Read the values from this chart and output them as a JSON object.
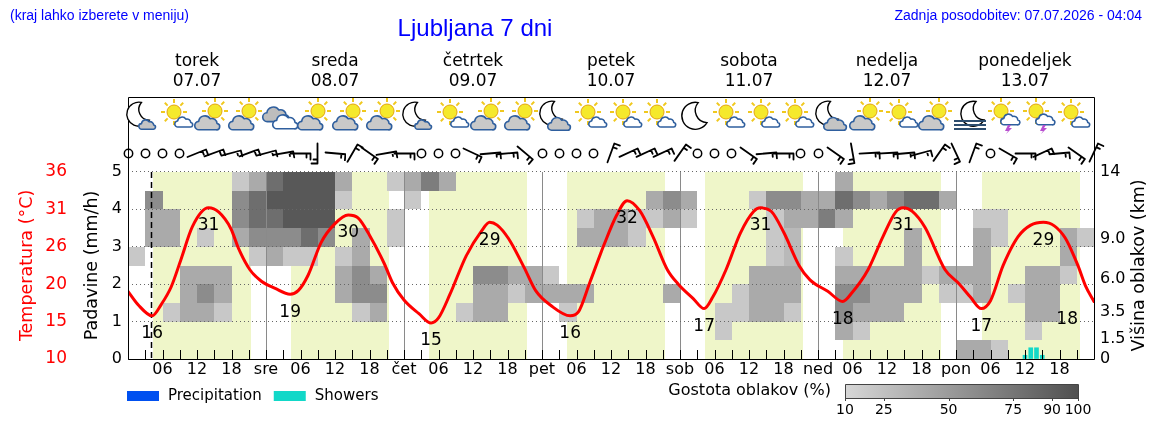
{
  "chart_data": [
    {
      "type": "line",
      "title": "Ljubljana 7 dni",
      "annotations": [
        "(kraj lahko izberete v meniju)",
        "Zadnja posodobitev: 07.07.2026 - 04:04"
      ],
      "xlim": [
        "2026-07-07T00:00",
        "2026-07-14T00:00"
      ],
      "xticks": [
        {
          "value": "2026-07-07T03:00",
          "label": null
        },
        {
          "value": "2026-07-07T06:00",
          "label": "06"
        },
        {
          "value": "2026-07-07T09:00",
          "label": null
        },
        {
          "value": "2026-07-07T12:00",
          "label": "12"
        },
        {
          "value": "2026-07-07T15:00",
          "label": null
        },
        {
          "value": "2026-07-07T18:00",
          "label": "18"
        },
        {
          "value": "2026-07-07T21:00",
          "label": null
        },
        {
          "value": "2026-07-08T00:00",
          "label": "sre"
        },
        {
          "value": "2026-07-08T03:00",
          "label": null
        },
        {
          "value": "2026-07-08T06:00",
          "label": "06"
        },
        {
          "value": "2026-07-08T09:00",
          "label": null
        },
        {
          "value": "2026-07-08T12:00",
          "label": "12"
        },
        {
          "value": "2026-07-08T15:00",
          "label": null
        },
        {
          "value": "2026-07-08T18:00",
          "label": "18"
        },
        {
          "value": "2026-07-08T21:00",
          "label": null
        },
        {
          "value": "2026-07-09T00:00",
          "label": "čet"
        },
        {
          "value": "2026-07-09T03:00",
          "label": null
        },
        {
          "value": "2026-07-09T06:00",
          "label": "06"
        },
        {
          "value": "2026-07-09T09:00",
          "label": null
        },
        {
          "value": "2026-07-09T12:00",
          "label": "12"
        },
        {
          "value": "2026-07-09T15:00",
          "label": null
        },
        {
          "value": "2026-07-09T18:00",
          "label": "18"
        },
        {
          "value": "2026-07-09T21:00",
          "label": null
        },
        {
          "value": "2026-07-10T00:00",
          "label": "pet"
        },
        {
          "value": "2026-07-10T03:00",
          "label": null
        },
        {
          "value": "2026-07-10T06:00",
          "label": "06"
        },
        {
          "value": "2026-07-10T09:00",
          "label": null
        },
        {
          "value": "2026-07-10T12:00",
          "label": "12"
        },
        {
          "value": "2026-07-10T15:00",
          "label": null
        },
        {
          "value": "2026-07-10T18:00",
          "label": "18"
        },
        {
          "value": "2026-07-10T21:00",
          "label": null
        },
        {
          "value": "2026-07-11T00:00",
          "label": "sob"
        },
        {
          "value": "2026-07-11T03:00",
          "label": null
        },
        {
          "value": "2026-07-11T06:00",
          "label": "06"
        },
        {
          "value": "2026-07-11T09:00",
          "label": null
        },
        {
          "value": "2026-07-11T12:00",
          "label": "12"
        },
        {
          "value": "2026-07-11T15:00",
          "label": null
        },
        {
          "value": "2026-07-11T18:00",
          "label": "18"
        },
        {
          "value": "2026-07-11T21:00",
          "label": null
        },
        {
          "value": "2026-07-12T00:00",
          "label": "ned"
        },
        {
          "value": "2026-07-12T03:00",
          "label": null
        },
        {
          "value": "2026-07-12T06:00",
          "label": "06"
        },
        {
          "value": "2026-07-12T09:00",
          "label": null
        },
        {
          "value": "2026-07-12T12:00",
          "label": "12"
        },
        {
          "value": "2026-07-12T15:00",
          "label": null
        },
        {
          "value": "2026-07-12T18:00",
          "label": "18"
        },
        {
          "value": "2026-07-12T21:00",
          "label": null
        },
        {
          "value": "2026-07-13T00:00",
          "label": "pon"
        },
        {
          "value": "2026-07-13T03:00",
          "label": null
        },
        {
          "value": "2026-07-13T06:00",
          "label": "06"
        },
        {
          "value": "2026-07-13T09:00",
          "label": null
        },
        {
          "value": "2026-07-13T12:00",
          "label": "12"
        },
        {
          "value": "2026-07-13T15:00",
          "label": null
        },
        {
          "value": "2026-07-13T18:00",
          "label": "18"
        },
        {
          "value": "2026-07-13T21:00",
          "label": null
        }
      ],
      "x2lim": [
        "2026-07-07T00:00",
        "2026-07-14T00:00"
      ],
      "x2ticks": [
        {
          "value": "2026-07-07T12:00",
          "label": "torek\n07.07"
        },
        {
          "value": "2026-07-08T12:00",
          "label": "sreda\n08.07"
        },
        {
          "value": "2026-07-09T12:00",
          "label": "četrtek\n09.07"
        },
        {
          "value": "2026-07-10T12:00",
          "label": "petek\n10.07"
        },
        {
          "value": "2026-07-11T12:00",
          "label": "sobota\n11.07"
        },
        {
          "value": "2026-07-12T12:00",
          "label": "nedelja\n12.07"
        },
        {
          "value": "2026-07-13T12:00",
          "label": "ponedeljek\n13.07"
        }
      ],
      "ylabel": "Padavine (mm/h)",
      "ylim": [
        0,
        7
      ],
      "yticks": [
        0,
        1,
        2,
        3,
        4,
        5
      ],
      "y2label": "Višina oblakov (km)",
      "y2lim": [
        0,
        19.6
      ],
      "y2ticks": [
        0,
        1.5,
        3.5,
        {
          "value": 6,
          "label": "6.0"
        },
        {
          "value": 9,
          "label": "9.0"
        },
        14
      ],
      "y3label": "Temperatura (°C)",
      "y3lim": [
        10,
        46.4
      ],
      "y3ticks": [
        10,
        {
          "value": 15.2,
          "label": "15"
        },
        {
          "value": 20.4,
          "label": "20"
        },
        {
          "value": 25.6,
          "label": "26"
        },
        {
          "value": 30.8,
          "label": "31"
        },
        36
      ],
      "grid": "y",
      "legend": "bottom left",
      "series": [
        {
          "type": "line",
          "axis": "y3",
          "color": "#ff0000",
          "x": [
            "2026-07-07T00:00",
            "2026-07-07T01:48",
            "2026-07-07T04:12",
            "2026-07-07T05:48",
            "2026-07-07T07:30",
            "2026-07-07T09:12",
            "2026-07-07T11:12",
            "2026-07-07T14:00",
            "2026-07-07T15:48",
            "2026-07-07T17:54",
            "2026-07-07T19:12",
            "2026-07-07T21:12",
            "2026-07-07T23:12",
            "2026-07-08T01:36",
            "2026-07-08T04:12",
            "2026-07-08T05:36",
            "2026-07-08T07:18",
            "2026-07-08T09:36",
            "2026-07-08T12:00",
            "2026-07-08T14:18",
            "2026-07-08T16:00",
            "2026-07-08T18:00",
            "2026-07-08T20:36",
            "2026-07-08T22:00",
            "2026-07-09T00:00",
            "2026-07-09T02:36",
            "2026-07-09T04:42",
            "2026-07-09T06:00",
            "2026-07-09T08:00",
            "2026-07-09T10:48",
            "2026-07-09T13:30",
            "2026-07-09T14:54",
            "2026-07-09T16:12",
            "2026-07-09T18:12",
            "2026-07-09T20:54",
            "2026-07-09T22:54",
            "2026-07-10T01:36",
            "2026-07-10T04:54",
            "2026-07-10T06:18",
            "2026-07-10T08:18",
            "2026-07-10T10:48",
            "2026-07-10T13:00",
            "2026-07-10T14:48",
            "2026-07-10T17:00",
            "2026-07-10T19:18",
            "2026-07-10T21:48",
            "2026-07-10T23:42",
            "2026-07-11T02:18",
            "2026-07-11T04:12",
            "2026-07-11T05:42",
            "2026-07-11T08:00",
            "2026-07-11T10:30",
            "2026-07-11T12:48",
            "2026-07-11T14:00",
            "2026-07-11T15:54",
            "2026-07-11T18:06",
            "2026-07-11T20:42",
            "2026-07-11T22:36",
            "2026-07-12T01:42",
            "2026-07-12T04:18",
            "2026-07-12T05:54",
            "2026-07-12T08:42",
            "2026-07-12T11:18",
            "2026-07-12T13:30",
            "2026-07-12T14:48",
            "2026-07-12T16:24",
            "2026-07-12T18:36",
            "2026-07-12T22:06",
            "2026-07-13T00:36",
            "2026-07-13T02:30",
            "2026-07-13T04:24",
            "2026-07-13T06:00",
            "2026-07-13T08:12",
            "2026-07-13T10:48",
            "2026-07-13T13:00",
            "2026-07-13T15:12",
            "2026-07-13T17:06",
            "2026-07-13T19:00",
            "2026-07-13T21:12",
            "2026-07-13T22:30",
            "2026-07-14T00:00"
          ],
          "values": [
            19.4,
            17.5,
            16,
            17.6,
            20,
            23.8,
            28.4,
            31,
            30.4,
            28.1,
            25.4,
            22.4,
            20.8,
            19.8,
            19,
            19.5,
            21.6,
            26.2,
            28.8,
            30,
            29.6,
            27.2,
            23.2,
            20.6,
            18.2,
            16.3,
            15,
            15.7,
            19,
            24.3,
            27.8,
            29,
            28.6,
            26.7,
            22.7,
            19.5,
            17.4,
            16,
            16.5,
            20.6,
            25.9,
            30,
            32,
            30.6,
            27,
            22.4,
            20.4,
            18.4,
            17,
            18.6,
            22.4,
            27.5,
            30.5,
            31,
            30.5,
            27.5,
            23,
            21,
            19.4,
            18,
            19.2,
            22.4,
            27,
            30.4,
            31,
            30.5,
            28.3,
            22.4,
            20.4,
            18.6,
            17,
            18.1,
            23,
            27,
            28.6,
            29,
            28.5,
            26.8,
            23,
            20.2,
            18
          ],
          "value_labels": [
            null,
            null,
            "16",
            null,
            null,
            null,
            null,
            "31",
            null,
            null,
            null,
            null,
            null,
            null,
            "19",
            null,
            null,
            null,
            null,
            "30",
            null,
            null,
            null,
            null,
            null,
            null,
            "15",
            null,
            null,
            null,
            null,
            "29",
            null,
            null,
            null,
            null,
            null,
            "16",
            null,
            null,
            null,
            null,
            "32",
            null,
            null,
            null,
            null,
            null,
            "17",
            null,
            null,
            null,
            null,
            "31",
            null,
            null,
            null,
            null,
            null,
            "18",
            null,
            null,
            null,
            null,
            "31",
            null,
            null,
            null,
            null,
            null,
            "17",
            null,
            null,
            null,
            null,
            "29",
            null,
            null,
            null,
            null,
            "18"
          ]
        },
        {
          "type": "bar",
          "name": "Precipitation",
          "color": "#0050f0"
        },
        {
          "type": "bar",
          "name": "Showers",
          "color": "#12d8c8",
          "x": [
            "2026-07-13T12:00",
            "2026-07-13T13:00",
            "2026-07-13T14:00",
            "2026-07-13T15:00"
          ],
          "values": [
            0.1,
            0.3,
            0.3,
            0.1
          ]
        }
      ]
    },
    {
      "type": "heatmap",
      "tick_labels": false,
      "xlim": [
        "2026-07-07T00:00",
        "2026-07-14T00:00"
      ],
      "x": [
        "2026-07-07T01:30",
        "2026-07-07T04:30",
        "2026-07-07T07:30",
        "2026-07-07T10:30",
        "2026-07-07T13:30",
        "2026-07-07T16:30",
        "2026-07-07T19:30",
        "2026-07-07T22:30",
        "2026-07-08T01:30",
        "2026-07-08T04:30",
        "2026-07-08T07:30",
        "2026-07-08T10:30",
        "2026-07-08T13:30",
        "2026-07-08T16:30",
        "2026-07-08T19:30",
        "2026-07-08T22:30",
        "2026-07-09T01:30",
        "2026-07-09T04:30",
        "2026-07-09T07:30",
        "2026-07-09T10:30",
        "2026-07-09T13:30",
        "2026-07-09T16:30",
        "2026-07-09T19:30",
        "2026-07-09T22:30",
        "2026-07-10T01:30",
        "2026-07-10T04:30",
        "2026-07-10T07:30",
        "2026-07-10T10:30",
        "2026-07-10T13:30",
        "2026-07-10T16:30",
        "2026-07-10T19:30",
        "2026-07-10T22:30",
        "2026-07-11T01:30",
        "2026-07-11T04:30",
        "2026-07-11T07:30",
        "2026-07-11T10:30",
        "2026-07-11T13:30",
        "2026-07-11T16:30",
        "2026-07-11T19:30",
        "2026-07-11T22:30",
        "2026-07-12T01:30",
        "2026-07-12T04:30",
        "2026-07-12T07:30",
        "2026-07-12T10:30",
        "2026-07-12T13:30",
        "2026-07-12T16:30",
        "2026-07-12T19:30",
        "2026-07-12T22:30",
        "2026-07-13T01:30",
        "2026-07-13T04:30",
        "2026-07-13T07:30",
        "2026-07-13T10:30",
        "2026-07-13T13:30",
        "2026-07-13T16:30",
        "2026-07-13T19:30",
        "2026-07-13T22:30"
      ],
      "y_categories": [
        null,
        null,
        null,
        null,
        null,
        null,
        null,
        null,
        null,
        null
      ],
      "cells": [
        [
          null,
          null,
          null,
          null,
          null,
          null,
          20,
          40,
          80,
          95,
          95,
          95,
          40,
          null,
          null,
          20,
          40,
          70,
          40,
          null,
          null,
          null,
          null,
          null,
          null,
          null,
          null,
          null,
          null,
          null,
          null,
          null,
          null,
          null,
          null,
          null,
          null,
          null,
          null,
          null,
          null,
          40,
          null,
          null,
          null,
          null,
          null,
          null,
          null,
          null,
          null,
          null,
          null,
          null,
          null,
          null
        ],
        [
          null,
          60,
          null,
          null,
          null,
          null,
          60,
          80,
          95,
          95,
          95,
          95,
          20,
          null,
          null,
          null,
          20,
          null,
          null,
          null,
          null,
          null,
          null,
          null,
          null,
          null,
          null,
          null,
          null,
          null,
          40,
          60,
          40,
          null,
          null,
          null,
          20,
          60,
          60,
          40,
          40,
          80,
          60,
          40,
          60,
          80,
          80,
          40,
          null,
          null,
          null,
          null,
          null,
          null,
          null,
          null
        ],
        [
          null,
          40,
          40,
          null,
          null,
          null,
          60,
          80,
          80,
          95,
          95,
          95,
          null,
          null,
          null,
          20,
          null,
          null,
          null,
          null,
          null,
          null,
          null,
          null,
          null,
          null,
          20,
          40,
          40,
          20,
          20,
          40,
          20,
          null,
          null,
          null,
          null,
          20,
          40,
          40,
          70,
          40,
          null,
          null,
          null,
          null,
          null,
          null,
          null,
          20,
          20,
          null,
          null,
          null,
          null,
          null
        ],
        [
          null,
          40,
          40,
          null,
          20,
          null,
          40,
          60,
          60,
          60,
          80,
          60,
          null,
          40,
          null,
          20,
          null,
          null,
          null,
          null,
          null,
          null,
          null,
          null,
          null,
          null,
          40,
          40,
          40,
          20,
          null,
          null,
          null,
          null,
          null,
          null,
          null,
          20,
          30,
          null,
          null,
          null,
          null,
          null,
          null,
          40,
          null,
          null,
          null,
          40,
          20,
          null,
          null,
          null,
          40,
          20
        ],
        [
          20,
          null,
          null,
          null,
          null,
          null,
          null,
          20,
          40,
          20,
          20,
          null,
          20,
          40,
          null,
          null,
          null,
          null,
          null,
          null,
          null,
          null,
          null,
          null,
          null,
          null,
          null,
          null,
          null,
          null,
          null,
          null,
          null,
          null,
          null,
          null,
          null,
          20,
          30,
          null,
          null,
          20,
          null,
          null,
          null,
          40,
          null,
          null,
          null,
          40,
          null,
          null,
          null,
          null,
          40,
          null
        ],
        [
          null,
          null,
          null,
          40,
          40,
          40,
          null,
          null,
          null,
          null,
          null,
          null,
          40,
          60,
          40,
          null,
          null,
          null,
          null,
          null,
          60,
          60,
          40,
          40,
          20,
          null,
          null,
          null,
          null,
          null,
          null,
          null,
          null,
          null,
          null,
          null,
          40,
          40,
          40,
          null,
          null,
          40,
          40,
          40,
          40,
          40,
          20,
          40,
          40,
          40,
          null,
          null,
          40,
          40,
          20,
          null
        ],
        [
          null,
          null,
          null,
          40,
          60,
          40,
          null,
          null,
          null,
          null,
          null,
          null,
          40,
          60,
          60,
          null,
          null,
          null,
          null,
          null,
          40,
          40,
          20,
          40,
          40,
          40,
          40,
          null,
          null,
          null,
          null,
          40,
          null,
          null,
          null,
          20,
          40,
          40,
          40,
          null,
          null,
          60,
          60,
          40,
          40,
          40,
          null,
          20,
          20,
          40,
          null,
          20,
          40,
          40,
          null,
          null
        ],
        [
          null,
          null,
          20,
          40,
          40,
          20,
          null,
          null,
          null,
          null,
          null,
          null,
          null,
          20,
          40,
          null,
          null,
          null,
          null,
          20,
          40,
          40,
          null,
          null,
          null,
          20,
          null,
          null,
          null,
          null,
          null,
          null,
          null,
          null,
          20,
          20,
          40,
          40,
          20,
          null,
          null,
          60,
          40,
          40,
          40,
          null,
          null,
          null,
          null,
          null,
          null,
          null,
          40,
          40,
          null,
          null
        ],
        [
          null,
          null,
          null,
          null,
          null,
          null,
          null,
          null,
          null,
          null,
          null,
          null,
          null,
          null,
          null,
          null,
          null,
          null,
          null,
          null,
          null,
          null,
          null,
          null,
          null,
          null,
          null,
          null,
          null,
          null,
          null,
          null,
          null,
          null,
          20,
          null,
          null,
          null,
          null,
          null,
          null,
          40,
          20,
          null,
          null,
          null,
          null,
          null,
          null,
          null,
          null,
          null,
          20,
          null,
          null,
          null
        ],
        [
          null,
          null,
          null,
          null,
          null,
          null,
          null,
          null,
          null,
          null,
          null,
          null,
          null,
          null,
          null,
          null,
          null,
          null,
          null,
          null,
          null,
          null,
          null,
          null,
          null,
          null,
          null,
          null,
          null,
          null,
          null,
          null,
          null,
          null,
          null,
          null,
          null,
          null,
          null,
          null,
          null,
          null,
          null,
          null,
          null,
          null,
          null,
          null,
          40,
          40,
          20,
          null,
          null,
          null,
          null,
          null
        ]
      ],
      "clabel": "Gostota oblakov (%)",
      "clim": [
        10,
        100
      ],
      "cticks": [
        10,
        25,
        50,
        75,
        90,
        100
      ],
      "bands": [
        {
          "axis": "x",
          "from": "2026-07-07T04:18",
          "to": "2026-07-07T21:24",
          "color": "#eff6c9"
        },
        {
          "axis": "x",
          "from": "2026-07-08T04:18",
          "to": "2026-07-08T21:24",
          "color": "#eff6c9"
        },
        {
          "axis": "x",
          "from": "2026-07-09T04:18",
          "to": "2026-07-09T21:24",
          "color": "#eff6c9"
        },
        {
          "axis": "x",
          "from": "2026-07-10T04:18",
          "to": "2026-07-10T21:24",
          "color": "#eff6c9"
        },
        {
          "axis": "x",
          "from": "2026-07-11T04:18",
          "to": "2026-07-11T21:24",
          "color": "#eff6c9"
        },
        {
          "axis": "x",
          "from": "2026-07-12T04:18",
          "to": "2026-07-12T21:24",
          "color": "#eff6c9"
        },
        {
          "axis": "x",
          "from": "2026-07-13T04:36",
          "to": "2026-07-13T21:36",
          "color": "#eff6c9"
        }
      ],
      "ref_lines": [
        {
          "axis": "x",
          "value": "2026-07-07T04:04",
          "color": "#000000",
          "line_style": "dashed"
        },
        {
          "axis": "x",
          "value": "2026-07-08T00:00",
          "color": "#8a8a8a"
        },
        {
          "axis": "x",
          "value": "2026-07-09T00:00",
          "color": "#8a8a8a"
        },
        {
          "axis": "x",
          "value": "2026-07-10T00:00",
          "color": "#8a8a8a"
        },
        {
          "axis": "x",
          "value": "2026-07-11T00:00",
          "color": "#8a8a8a"
        },
        {
          "axis": "x",
          "value": "2026-07-12T00:00",
          "color": "#8a8a8a"
        },
        {
          "axis": "x",
          "value": "2026-07-13T00:00",
          "color": "#8a8a8a"
        }
      ]
    }
  ]
}
